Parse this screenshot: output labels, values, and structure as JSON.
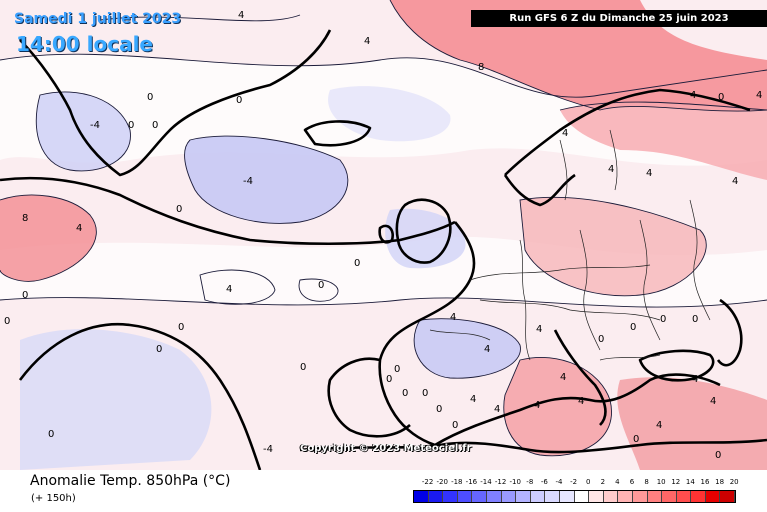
{
  "header": {
    "date": "Samedi 1 juillet 2023",
    "time": "14:00 locale",
    "run": "Run GFS 6 Z du Dimanche 25 juin 2023"
  },
  "footer": {
    "copyright": "Copyright © 2023 Meteociel.fr",
    "variable": "Anomalie Temp. 850hPa (°C)",
    "lead_time": "(+ 150h)"
  },
  "legend": {
    "ticks": [
      "-22",
      "-20",
      "-18",
      "-16",
      "-14",
      "-12",
      "-10",
      "-8",
      "-6",
      "-4",
      "-2",
      "0",
      "2",
      "4",
      "6",
      "8",
      "10",
      "12",
      "14",
      "16",
      "18",
      "20"
    ],
    "colors": [
      "#0000e6",
      "#1a1af0",
      "#3333ff",
      "#4d4dff",
      "#6666ff",
      "#8080ff",
      "#9999ff",
      "#b3b3ff",
      "#ccccff",
      "#d9d9ff",
      "#e6e6ff",
      "#ffffff",
      "#ffe6e6",
      "#ffcccc",
      "#ffb3b3",
      "#ff9999",
      "#ff8080",
      "#ff6666",
      "#ff4d4d",
      "#ff3333",
      "#e60000",
      "#cc0000"
    ]
  },
  "contour_labels": [
    "4",
    "8",
    "0",
    "-4",
    "0",
    "0",
    "0",
    "4",
    "4",
    "4",
    "0",
    "0",
    "0",
    "0",
    "8",
    "4",
    "0",
    "0",
    "-4",
    "0",
    "4",
    "0",
    "4",
    "4",
    "4",
    "4",
    "0",
    "0",
    "0",
    "0",
    "4",
    "4",
    "4",
    "4",
    "4",
    "4",
    "4",
    "4",
    "0",
    "4",
    "0",
    "0",
    "0",
    "0",
    "0",
    "0",
    "4",
    "0",
    "0",
    "-4",
    "0",
    "4"
  ]
}
